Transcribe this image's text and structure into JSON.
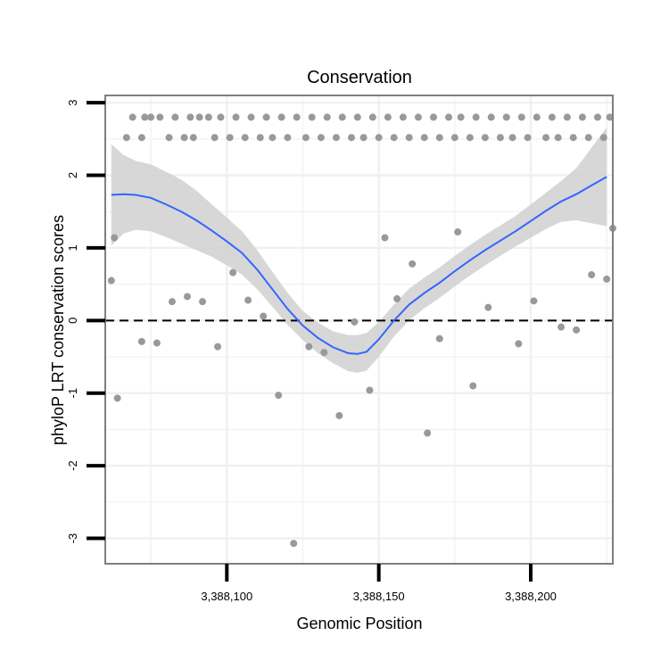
{
  "chart_data": {
    "type": "scatter",
    "title": "Conservation",
    "xlabel": "Genomic Position",
    "ylabel": "phyloP LRT conservation scores",
    "xlim": [
      3388060,
      3388227
    ],
    "ylim": [
      -3.35,
      3.1
    ],
    "xticks": [
      3388100,
      3388150,
      3388200
    ],
    "xtick_labels": [
      "3,388,100",
      "3,388,150",
      "3,388,200"
    ],
    "yticks": [
      -3,
      -2,
      -1,
      0,
      1,
      2,
      3
    ],
    "ytick_labels": [
      "-3",
      "-2",
      "-1",
      "0",
      "1",
      "2",
      "3"
    ],
    "grid": true,
    "reference_line": {
      "y": 0,
      "style": "dashed"
    },
    "colors": {
      "points": "#999999",
      "smooth": "#3366FF",
      "ribbon": "#d0d0d0",
      "panel_border": "#7f7f7f",
      "grid": "#f0f0f0"
    },
    "points": {
      "x": [
        3388067,
        3388069,
        3388072,
        3388073,
        3388075,
        3388078,
        3388081,
        3388083,
        3388086,
        3388088,
        3388089,
        3388091,
        3388094,
        3388096,
        3388098,
        3388101,
        3388103,
        3388106,
        3388108,
        3388111,
        3388113,
        3388115,
        3388118,
        3388120,
        3388123,
        3388126,
        3388128,
        3388131,
        3388133,
        3388136,
        3388138,
        3388141,
        3388143,
        3388145,
        3388148,
        3388150,
        3388153,
        3388155,
        3388158,
        3388160,
        3388163,
        3388165,
        3388168,
        3388170,
        3388173,
        3388175,
        3388177,
        3388180,
        3388182,
        3388185,
        3388187,
        3388190,
        3388192,
        3388194,
        3388197,
        3388199,
        3388202,
        3388205,
        3388207,
        3388209,
        3388212,
        3388214,
        3388217,
        3388219,
        3388222,
        3388224,
        3388226,
        3388227,
        3388225,
        3388220,
        3388215,
        3388210,
        3388201,
        3388196,
        3388186,
        3388181,
        3388176,
        3388170,
        3388166,
        3388161,
        3388156,
        3388152,
        3388147,
        3388142,
        3388137,
        3388132,
        3388127,
        3388122,
        3388117,
        3388112,
        3388107,
        3388102,
        3388097,
        3388092,
        3388087,
        3388082,
        3388077,
        3388072,
        3388062,
        3388063,
        3388064
      ],
      "y": [
        2.52,
        2.8,
        2.52,
        2.8,
        2.8,
        2.8,
        2.52,
        2.8,
        2.52,
        2.8,
        2.52,
        2.8,
        2.8,
        2.52,
        2.8,
        2.52,
        2.8,
        2.52,
        2.8,
        2.52,
        2.8,
        2.52,
        2.8,
        2.52,
        2.8,
        2.52,
        2.8,
        2.52,
        2.8,
        2.52,
        2.8,
        2.52,
        2.8,
        2.52,
        2.8,
        2.52,
        2.8,
        2.52,
        2.8,
        2.52,
        2.8,
        2.52,
        2.8,
        2.52,
        2.8,
        2.52,
        2.8,
        2.52,
        2.8,
        2.52,
        2.8,
        2.52,
        2.8,
        2.52,
        2.8,
        2.52,
        2.8,
        2.52,
        2.8,
        2.52,
        2.8,
        2.52,
        2.8,
        2.52,
        2.8,
        2.52,
        2.8,
        1.27,
        0.57,
        0.63,
        -0.13,
        -0.09,
        0.27,
        -0.32,
        0.18,
        -0.9,
        1.22,
        -0.25,
        -1.55,
        0.78,
        0.3,
        1.14,
        -0.96,
        -0.02,
        -1.31,
        -0.44,
        -0.36,
        -3.07,
        -1.03,
        0.06,
        0.28,
        0.66,
        -0.36,
        0.26,
        0.33,
        0.26,
        -0.31,
        -0.29,
        0.55,
        1.14,
        -1.07
      ]
    },
    "smooth": {
      "x": [
        3388062,
        3388066,
        3388070,
        3388075,
        3388080,
        3388085,
        3388090,
        3388095,
        3388100,
        3388105,
        3388110,
        3388115,
        3388120,
        3388125,
        3388130,
        3388135,
        3388140,
        3388143,
        3388146,
        3388150,
        3388155,
        3388160,
        3388165,
        3388170,
        3388175,
        3388180,
        3388185,
        3388190,
        3388195,
        3388200,
        3388205,
        3388210,
        3388215,
        3388220,
        3388225
      ],
      "y": [
        1.73,
        1.74,
        1.73,
        1.69,
        1.6,
        1.5,
        1.38,
        1.24,
        1.09,
        0.93,
        0.7,
        0.43,
        0.16,
        -0.07,
        -0.24,
        -0.37,
        -0.45,
        -0.46,
        -0.43,
        -0.26,
        0.0,
        0.22,
        0.38,
        0.52,
        0.68,
        0.83,
        0.97,
        1.1,
        1.23,
        1.37,
        1.51,
        1.64,
        1.74,
        1.86,
        1.98
      ],
      "lower": [
        1.03,
        1.2,
        1.25,
        1.23,
        1.15,
        1.06,
        0.97,
        0.88,
        0.76,
        0.63,
        0.43,
        0.19,
        -0.06,
        -0.27,
        -0.45,
        -0.59,
        -0.7,
        -0.72,
        -0.69,
        -0.5,
        -0.22,
        0.0,
        0.17,
        0.31,
        0.47,
        0.62,
        0.76,
        0.89,
        1.02,
        1.14,
        1.26,
        1.36,
        1.38,
        1.34,
        1.3
      ],
      "upper": [
        2.43,
        2.28,
        2.2,
        2.15,
        2.05,
        1.94,
        1.79,
        1.6,
        1.42,
        1.23,
        0.97,
        0.67,
        0.38,
        0.13,
        -0.03,
        -0.15,
        -0.2,
        -0.2,
        -0.17,
        -0.02,
        0.22,
        0.44,
        0.59,
        0.73,
        0.89,
        1.04,
        1.18,
        1.31,
        1.44,
        1.6,
        1.76,
        1.92,
        2.1,
        2.38,
        2.66
      ]
    }
  }
}
